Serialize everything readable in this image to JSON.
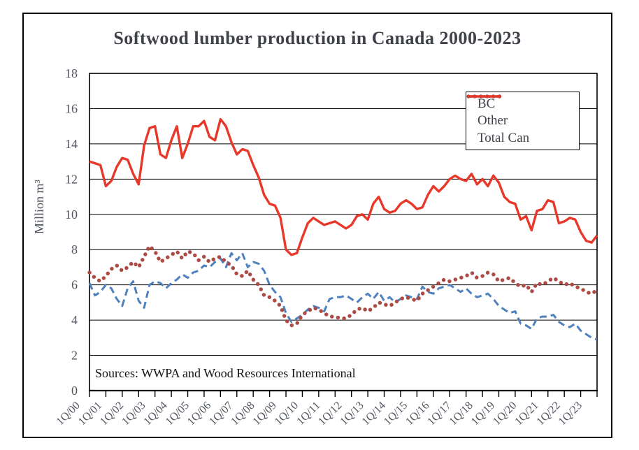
{
  "title": "Softwood lumber production in Canada 2000-2023",
  "source_note": "Sources: WWPA and Wood Resources International",
  "y_axis": {
    "label": "Million m³",
    "min": 0,
    "max": 18,
    "tick_step": 2,
    "ticks": [
      0,
      2,
      4,
      6,
      8,
      10,
      12,
      14,
      16,
      18
    ]
  },
  "x_axis": {
    "tick_labels": [
      "1Q/00",
      "1Q/01",
      "1Q/02",
      "1Q/03",
      "1Q/04",
      "1Q/05",
      "1Q/06",
      "1Q/07",
      "1Q/08",
      "1Q/09",
      "1Q/10",
      "1Q/11",
      "1Q/12",
      "1Q/13",
      "1Q/14",
      "1Q/15",
      "1Q/16",
      "1Q/17",
      "1Q/18",
      "1Q/19",
      "1Q/20",
      "1Q/21",
      "1Q/22",
      "1Q/23"
    ],
    "frequency": "quarterly",
    "points_per_label": 4,
    "minor_tick_every_n_points": 3
  },
  "legend": {
    "position": "top-right",
    "entries": [
      {
        "label": "BC",
        "style": "dashed",
        "color": "#4f81bd"
      },
      {
        "label": "Other",
        "style": "dotted",
        "color": "#ae4a44"
      },
      {
        "label": "Total Can",
        "style": "solid",
        "color": "#e8382a"
      }
    ]
  },
  "colors": {
    "grid": "#000000",
    "axis_text": "#50555e",
    "title_text": "#3f4248",
    "background": "#ffffff"
  },
  "chart_data": {
    "type": "line",
    "title": "Softwood lumber production in Canada 2000-2023",
    "xlabel": "",
    "ylabel": "Million m³",
    "ylim": [
      0,
      18
    ],
    "grid": "horizontal",
    "legend_position": "top-right",
    "x_range": "1Q/2000 to 2Q/2023, quarterly",
    "series": [
      {
        "name": "BC",
        "style": "dashed",
        "color": "#4f81bd",
        "values": [
          6.1,
          5.4,
          5.6,
          6.0,
          5.8,
          5.2,
          4.8,
          5.8,
          6.2,
          5.1,
          4.7,
          6.0,
          6.2,
          6.1,
          5.8,
          6.1,
          6.3,
          6.6,
          6.4,
          6.7,
          6.8,
          7.1,
          7.0,
          7.3,
          7.5,
          7.0,
          7.8,
          7.4,
          7.8,
          7.0,
          7.3,
          7.2,
          6.8,
          6.0,
          5.6,
          5.3,
          4.4,
          3.9,
          4.1,
          4.3,
          4.6,
          4.8,
          4.7,
          4.5,
          5.2,
          5.3,
          5.3,
          5.4,
          5.2,
          5.0,
          5.3,
          5.5,
          5.2,
          5.6,
          5.1,
          5.3,
          5.0,
          5.2,
          5.4,
          5.3,
          5.2,
          5.9,
          5.6,
          5.5,
          5.8,
          5.9,
          6.0,
          5.8,
          5.6,
          5.8,
          5.5,
          5.3,
          5.4,
          5.5,
          5.2,
          4.8,
          4.6,
          4.4,
          4.5,
          3.8,
          3.7,
          3.5,
          4.1,
          4.2,
          4.2,
          4.3,
          3.9,
          3.7,
          3.6,
          3.8,
          3.4,
          3.2,
          3.0,
          2.9
        ]
      },
      {
        "name": "Other",
        "style": "dotted",
        "color": "#ae4a44",
        "values": [
          6.7,
          6.4,
          6.2,
          6.5,
          6.9,
          7.1,
          6.8,
          7.0,
          7.3,
          7.0,
          7.6,
          8.2,
          7.9,
          7.3,
          7.5,
          7.7,
          7.9,
          7.5,
          7.9,
          7.8,
          7.4,
          7.6,
          7.3,
          7.5,
          7.6,
          7.3,
          7.1,
          6.6,
          6.5,
          6.8,
          6.3,
          6.0,
          5.4,
          5.3,
          5.1,
          4.8,
          4.0,
          3.7,
          3.8,
          4.3,
          4.5,
          4.7,
          4.6,
          4.4,
          4.2,
          4.2,
          4.1,
          4.1,
          4.3,
          4.6,
          4.7,
          4.5,
          4.7,
          5.0,
          4.9,
          4.8,
          5.0,
          5.2,
          5.3,
          5.2,
          5.1,
          5.5,
          5.7,
          5.9,
          6.1,
          6.3,
          6.2,
          6.3,
          6.4,
          6.5,
          6.7,
          6.4,
          6.5,
          6.7,
          6.6,
          6.2,
          6.3,
          6.4,
          6.1,
          5.9,
          6.0,
          5.6,
          6.1,
          6.0,
          6.2,
          6.4,
          6.2,
          6.0,
          6.1,
          5.9,
          5.8,
          5.6,
          5.5,
          5.7
        ]
      },
      {
        "name": "Total Can",
        "style": "solid",
        "color": "#e8382a",
        "values": [
          13.0,
          12.9,
          12.8,
          11.6,
          11.9,
          12.7,
          13.2,
          13.1,
          12.3,
          11.7,
          13.9,
          14.9,
          15.0,
          13.4,
          13.2,
          14.2,
          15.0,
          13.2,
          14.0,
          15.0,
          15.0,
          15.3,
          14.4,
          14.2,
          15.4,
          15.0,
          14.1,
          13.4,
          13.7,
          13.6,
          12.8,
          12.1,
          11.1,
          10.6,
          10.5,
          9.8,
          8.0,
          7.7,
          7.8,
          8.7,
          9.5,
          9.8,
          9.6,
          9.4,
          9.5,
          9.6,
          9.4,
          9.2,
          9.4,
          9.9,
          10.0,
          9.7,
          10.6,
          11.0,
          10.3,
          10.1,
          10.2,
          10.6,
          10.8,
          10.6,
          10.3,
          10.4,
          11.1,
          11.6,
          11.3,
          11.6,
          12.0,
          12.2,
          12.0,
          11.9,
          12.3,
          11.7,
          12.0,
          11.6,
          12.2,
          11.8,
          11.0,
          10.7,
          10.6,
          9.7,
          9.9,
          9.1,
          10.2,
          10.3,
          10.8,
          10.7,
          9.5,
          9.6,
          9.8,
          9.7,
          9.0,
          8.5,
          8.4,
          8.8
        ]
      }
    ]
  }
}
